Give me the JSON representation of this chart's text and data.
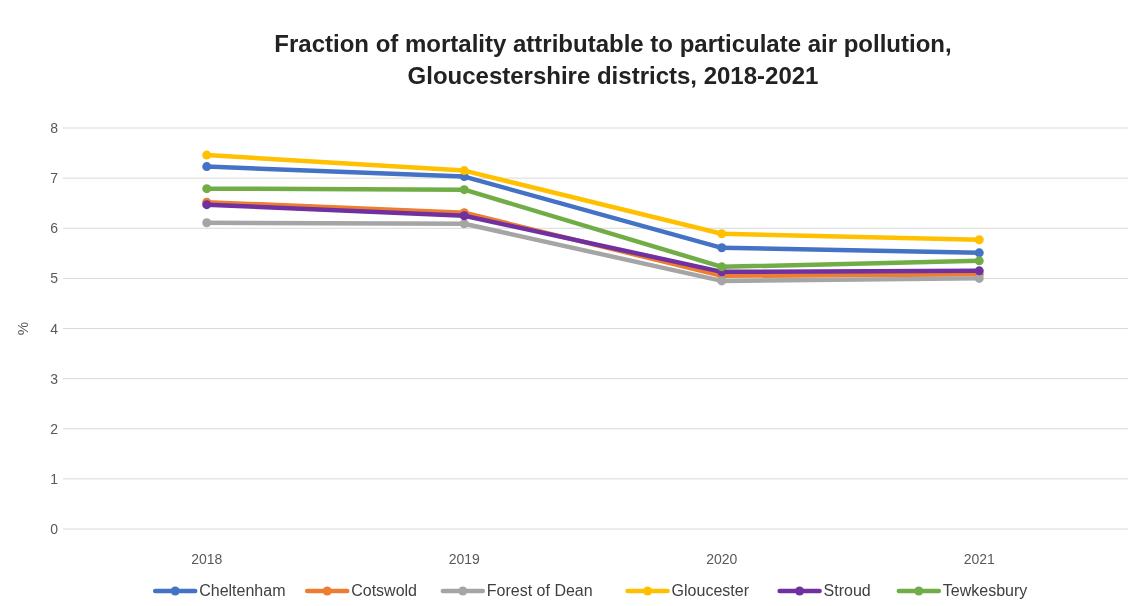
{
  "chart_data": {
    "type": "line",
    "title": "Fraction of mortality attributable to particulate air pollution,\nGloucestershire districts, 2018-2021",
    "ylabel": "%",
    "categories": [
      "2018",
      "2019",
      "2020",
      "2021"
    ],
    "ylim": [
      0,
      8
    ],
    "yticks": [
      0,
      1,
      2,
      3,
      4,
      5,
      6,
      7,
      8
    ],
    "grid": "y",
    "legend": "bottom",
    "marker": "circle",
    "line_style": "solid",
    "series": [
      {
        "name": "Cheltenham",
        "color": "#4472c4",
        "values": [
          7.23,
          7.03,
          5.61,
          5.51
        ]
      },
      {
        "name": "Cotswold",
        "color": "#ed7d31",
        "values": [
          6.52,
          6.31,
          5.05,
          5.08
        ]
      },
      {
        "name": "Forest of Dean",
        "color": "#a5a5a5",
        "values": [
          6.11,
          6.09,
          4.95,
          5.0
        ]
      },
      {
        "name": "Gloucester",
        "color": "#ffc000",
        "values": [
          7.46,
          7.15,
          5.89,
          5.77
        ]
      },
      {
        "name": "Stroud",
        "color": "#7030a0",
        "values": [
          6.47,
          6.25,
          5.13,
          5.15
        ]
      },
      {
        "name": "Tewkesbury",
        "color": "#70ad47",
        "values": [
          6.79,
          6.77,
          5.23,
          5.35
        ]
      }
    ]
  }
}
